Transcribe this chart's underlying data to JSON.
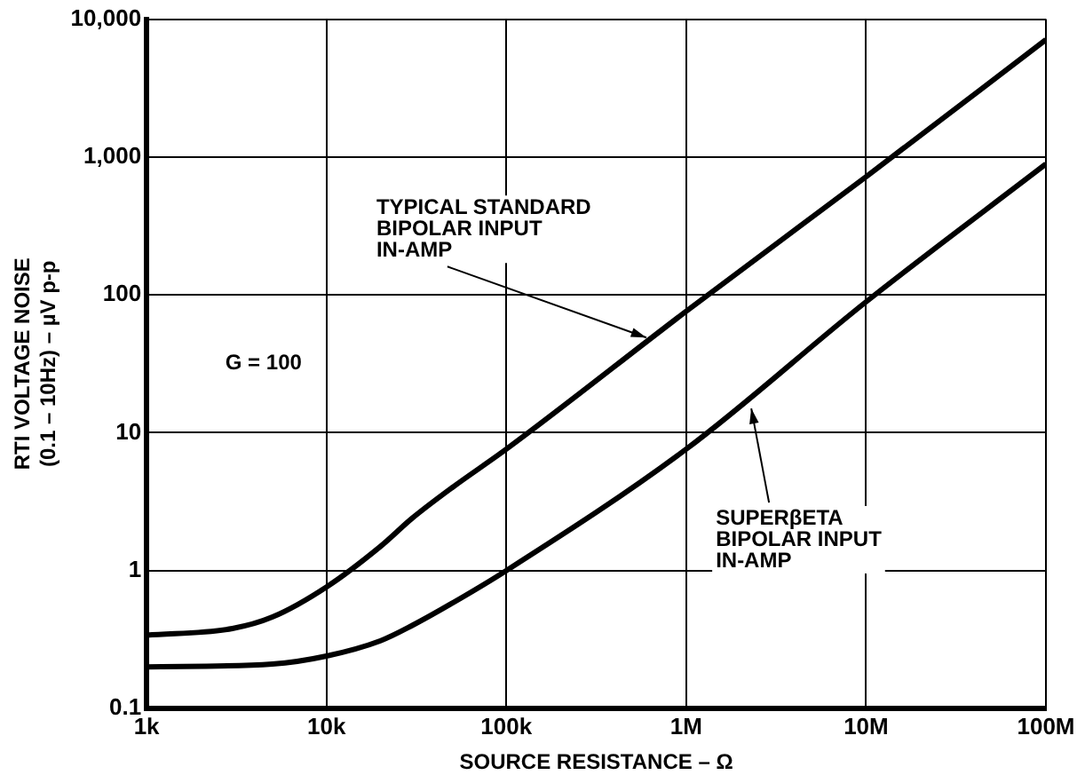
{
  "chart_data": {
    "type": "line",
    "xlabel": "SOURCE RESISTANCE – Ω",
    "ylabel": "RTI VOLTAGE NOISE\n(0.1 – 10Hz) – µV p-p",
    "log": "xy",
    "grid": true,
    "legend": false,
    "marker": "none",
    "line_style": "solid",
    "xlim": [
      1000,
      100000000
    ],
    "ylim": [
      0.1,
      10000
    ],
    "xticks": [
      {
        "value": 1000,
        "label": "1k"
      },
      {
        "value": 10000,
        "label": "10k"
      },
      {
        "value": 100000,
        "label": "100k"
      },
      {
        "value": 1000000,
        "label": "1M"
      },
      {
        "value": 10000000,
        "label": "10M"
      },
      {
        "value": 100000000,
        "label": "100M"
      }
    ],
    "yticks": [
      0.1,
      1,
      10,
      100,
      {
        "value": 1000,
        "label": "1,000"
      },
      {
        "value": 10000,
        "label": "10,000"
      }
    ],
    "series": [
      {
        "color": "#000000",
        "x": [
          1000,
          3000,
          5000,
          10000,
          20000,
          30000,
          50000,
          100000,
          1000000,
          10000000,
          100000000
        ],
        "values": [
          0.34,
          0.38,
          0.46,
          0.76,
          1.5,
          2.4,
          4,
          7.6,
          76,
          720,
          7100
        ]
      },
      {
        "color": "#000000",
        "x": [
          1000,
          5000,
          10000,
          20000,
          30000,
          50000,
          100000,
          1000000,
          10000000,
          100000000
        ],
        "values": [
          0.2,
          0.21,
          0.24,
          0.31,
          0.4,
          0.58,
          1,
          7.6,
          89,
          890
        ]
      }
    ],
    "annotations": [
      {
        "text": "TYPICAL STANDARD\nBIPOLAR INPUT\nIN-AMP",
        "x": 600000,
        "y": 49
      },
      {
        "text": "SUPERβETA\nBIPOLAR INPUT\nIN-AMP",
        "x": 2300000,
        "y": 15
      },
      "G = 100"
    ]
  }
}
